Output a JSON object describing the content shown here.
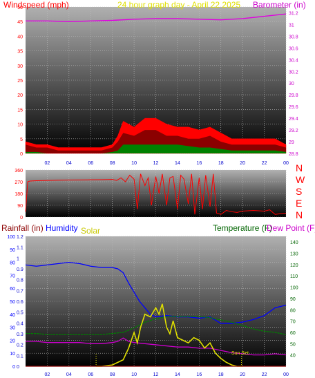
{
  "header": {
    "wind_label": "Windspeed (mph)",
    "title": "24 hour graph day - April 22 2025",
    "baro_label": "Barometer (in)"
  },
  "lower_header": {
    "rain_label": "Rainfall (in)",
    "humidity_label": "Humidity",
    "solar_label": "Solar",
    "temp_label": "Temperature (F)",
    "dew_label": "Dew Point (F)"
  },
  "annotation": {
    "sunset": "Sun Set"
  },
  "colors": {
    "wind": "#ff0000",
    "gust_dark": "#8b0000",
    "avg": "#008000",
    "barometer": "#e000e0",
    "direction": "#ff0000",
    "temperature": "#008000",
    "dewpoint": "#cc00cc",
    "humidity": "#0000ff",
    "solar": "#e0e000",
    "rainfall": "#8b0000",
    "grid": "#bbbbbb",
    "panel_top": "#a8a8a8",
    "panel_bottom": "#000000"
  },
  "chart_data": [
    {
      "type": "area",
      "title": "24 hour graph day - April 22 2025",
      "x_ticks": [
        "02",
        "04",
        "06",
        "08",
        "10",
        "12",
        "14",
        "16",
        "18",
        "20",
        "22",
        "00"
      ],
      "xlim": [
        0,
        24
      ],
      "ylabel": "Windspeed (mph)",
      "ylim": [
        0,
        50
      ],
      "y_ticks": [
        0,
        5,
        10,
        15,
        20,
        25,
        30,
        35,
        40,
        45,
        50
      ],
      "y2label": "Barometer (in)",
      "y2lim": [
        28.8,
        31.3
      ],
      "y2_ticks": [
        "28.8",
        "29",
        "29.2",
        "29.4",
        "29.6",
        "29.8",
        "30",
        "30.2",
        "30.4",
        "30.6",
        "30.8",
        "31",
        "31.2"
      ],
      "grid": true,
      "series": [
        {
          "name": "Windspeed (mph)",
          "axis": "left",
          "style": "area",
          "x": [
            0,
            1,
            2,
            3,
            4,
            5,
            6,
            7,
            8,
            8.5,
            9,
            10,
            11,
            12,
            13,
            14,
            15,
            16,
            17,
            18,
            19,
            20,
            21,
            22,
            23,
            24
          ],
          "y": [
            3,
            2,
            2,
            1,
            1,
            1,
            1,
            1,
            2,
            4,
            7,
            6,
            8,
            8,
            6,
            6,
            5,
            5,
            6,
            4,
            3,
            3,
            3,
            3,
            3,
            2
          ]
        },
        {
          "name": "Gust",
          "axis": "left",
          "style": "area",
          "x": [
            0,
            1,
            2,
            3,
            4,
            5,
            6,
            7,
            8,
            8.5,
            9,
            10,
            11,
            12,
            13,
            14,
            15,
            16,
            17,
            18,
            19,
            20,
            21,
            22,
            23,
            24
          ],
          "y": [
            4,
            3,
            3,
            2,
            2,
            2,
            2,
            2,
            3,
            6,
            11,
            9,
            12,
            12,
            10,
            9,
            9,
            8,
            9,
            7,
            5,
            5,
            5,
            5,
            5,
            3
          ]
        },
        {
          "name": "Average",
          "axis": "left",
          "style": "area",
          "x": [
            0,
            1,
            2,
            3,
            4,
            5,
            6,
            7,
            8,
            8.5,
            9,
            10,
            11,
            12,
            13,
            14,
            15,
            16,
            17,
            18,
            19,
            20,
            21,
            22,
            23,
            24
          ],
          "y": [
            0.5,
            0.5,
            0,
            0,
            0,
            0,
            0,
            0,
            0.5,
            1,
            3,
            3,
            3,
            3,
            3,
            3,
            2.5,
            2,
            2,
            1.5,
            1,
            1,
            1,
            1,
            1,
            0.5
          ]
        },
        {
          "name": "Barometer (in)",
          "axis": "right",
          "style": "line",
          "x": [
            0,
            2,
            4,
            6,
            8,
            10,
            12,
            14,
            16,
            18,
            20,
            22,
            24
          ],
          "y": [
            31.06,
            31.06,
            31.05,
            31.06,
            31.07,
            31.09,
            31.1,
            31.1,
            31.09,
            31.08,
            31.1,
            31.14,
            31.18
          ]
        }
      ]
    },
    {
      "type": "scatter",
      "title": "",
      "xlim": [
        0,
        24
      ],
      "ylim": [
        0,
        360
      ],
      "y_ticks": [
        0,
        90,
        180,
        270,
        360
      ],
      "compass": [
        "N",
        "W",
        "S",
        "E",
        "N"
      ],
      "grid": true,
      "series": [
        {
          "name": "Wind direction",
          "x": [
            0,
            0.2,
            0.4,
            1,
            2,
            3,
            4,
            5,
            6,
            7,
            8,
            8.4,
            8.8,
            9.2,
            9.6,
            10,
            10.3,
            10.6,
            11,
            11.3,
            11.6,
            12,
            12.3,
            12.6,
            13,
            13.3,
            13.6,
            14,
            14.3,
            14.6,
            15,
            15.3,
            15.6,
            16,
            16.3,
            16.6,
            17,
            17.3,
            17.6,
            18,
            18.5,
            19,
            19.5,
            20,
            21,
            22,
            22.5,
            23,
            23.5,
            24
          ],
          "y": [
            40,
            270,
            275,
            278,
            280,
            282,
            283,
            284,
            285,
            286,
            288,
            280,
            300,
            270,
            320,
            290,
            60,
            330,
            240,
            300,
            90,
            310,
            180,
            330,
            90,
            300,
            310,
            60,
            320,
            290,
            100,
            330,
            20,
            300,
            60,
            320,
            80,
            330,
            30,
            20,
            50,
            40,
            35,
            45,
            50,
            45,
            55,
            20,
            25,
            30
          ]
        }
      ]
    },
    {
      "type": "line",
      "title": "",
      "x_ticks": [
        "02",
        "04",
        "06",
        "08",
        "10",
        "12",
        "14",
        "16",
        "18",
        "20",
        "22",
        "00"
      ],
      "xlim": [
        0,
        24
      ],
      "ylabel": "Rainfall (in)",
      "ylim_rain": [
        0,
        1.2
      ],
      "rain_ticks": [
        0,
        0.1,
        0.2,
        0.3,
        0.4,
        0.5,
        0.6,
        0.7,
        0.8,
        0.9,
        1,
        1.1,
        1.2
      ],
      "ylim_humidity": [
        0,
        100
      ],
      "humidity_ticks": [
        0,
        10,
        20,
        30,
        40,
        50,
        60,
        70,
        80,
        90,
        100
      ],
      "y2label": "Temperature (F)",
      "ylim_temp": [
        30,
        145
      ],
      "temp_ticks": [
        40,
        50,
        60,
        70,
        80,
        90,
        100,
        110,
        120,
        130,
        140
      ],
      "grid": true,
      "series": [
        {
          "name": "Humidity",
          "axis": "humidity",
          "x": [
            0,
            1,
            2,
            3,
            4,
            5,
            6,
            7,
            8,
            8.5,
            9,
            9.5,
            10,
            10.5,
            11,
            11.5,
            12,
            13,
            14,
            15,
            16,
            17,
            18,
            19,
            20,
            21,
            22,
            23,
            24
          ],
          "y": [
            78,
            77,
            78,
            79,
            80,
            79,
            77,
            76,
            76,
            75,
            72,
            64,
            57,
            50,
            45,
            40,
            38,
            39,
            38,
            38,
            37,
            38,
            33,
            33,
            34,
            36,
            39,
            45,
            47
          ]
        },
        {
          "name": "Temperature (F)",
          "axis": "temp",
          "x": [
            0,
            1,
            2,
            3,
            4,
            5,
            6,
            7,
            8,
            9,
            10,
            11,
            12,
            13,
            14,
            15,
            16,
            17,
            18,
            19,
            20,
            21,
            22,
            23,
            24
          ],
          "y": [
            59,
            59,
            58,
            58,
            58,
            58,
            58,
            58,
            59,
            60,
            64,
            69,
            72,
            74,
            74,
            74,
            74,
            73,
            71,
            69,
            66,
            63,
            61,
            60,
            58
          ]
        },
        {
          "name": "Dew Point (F)",
          "axis": "temp",
          "x": [
            0,
            1,
            2,
            3,
            4,
            5,
            6,
            7,
            8,
            8.5,
            9,
            9.5,
            10,
            11,
            12,
            13,
            14,
            15,
            16,
            17,
            18,
            19,
            20,
            21,
            22,
            23,
            24
          ],
          "y": [
            52,
            52,
            51,
            51,
            51,
            51,
            50,
            50,
            51,
            52,
            55,
            52,
            51,
            50,
            49,
            48,
            47,
            47,
            46,
            46,
            44,
            42,
            41,
            40,
            40,
            41,
            40
          ]
        },
        {
          "name": "Solar",
          "axis": "humidity",
          "x": [
            6.5,
            7,
            8,
            9,
            9.5,
            10,
            10.3,
            10.6,
            11,
            11.5,
            12,
            12.3,
            12.6,
            13,
            13.3,
            13.6,
            14,
            14.5,
            15,
            15.5,
            16,
            16.5,
            17,
            17.5,
            18,
            18.5,
            19,
            19.5,
            20
          ],
          "y": [
            0,
            0,
            1,
            5,
            14,
            26,
            18,
            30,
            40,
            38,
            45,
            40,
            48,
            30,
            25,
            35,
            22,
            20,
            18,
            22,
            20,
            14,
            18,
            10,
            6,
            3,
            1,
            0,
            0
          ]
        },
        {
          "name": "Rainfall (in)",
          "axis": "rain",
          "x": [
            0,
            24
          ],
          "y": [
            0,
            0
          ]
        }
      ]
    }
  ]
}
